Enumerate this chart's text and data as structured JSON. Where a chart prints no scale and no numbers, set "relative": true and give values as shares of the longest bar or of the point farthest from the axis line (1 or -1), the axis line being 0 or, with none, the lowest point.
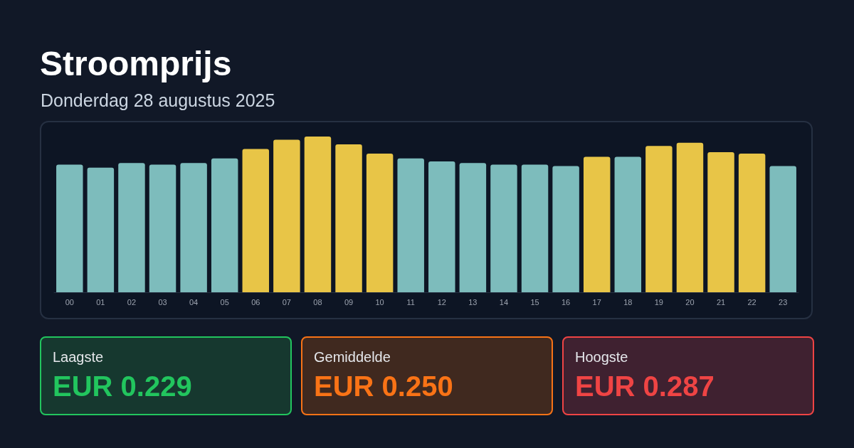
{
  "chart_data": {
    "type": "bar",
    "title": "Stroomprijs",
    "subtitle": "Donderdag 28 augustus 2025",
    "relative": true,
    "categories": [
      "00",
      "01",
      "02",
      "03",
      "04",
      "05",
      "06",
      "07",
      "08",
      "09",
      "10",
      "11",
      "12",
      "13",
      "14",
      "15",
      "16",
      "17",
      "18",
      "19",
      "20",
      "21",
      "22",
      "23"
    ],
    "values": [
      0.82,
      0.8,
      0.83,
      0.82,
      0.83,
      0.86,
      0.92,
      0.98,
      1,
      0.95,
      0.89,
      0.86,
      0.84,
      0.83,
      0.82,
      0.82,
      0.81,
      0.87,
      0.87,
      0.94,
      0.96,
      0.9,
      0.89,
      0.81
    ],
    "colors": [
      "#7dbcbc",
      "#7dbcbc",
      "#7dbcbc",
      "#7dbcbc",
      "#7dbcbc",
      "#7dbcbc",
      "#e8c547",
      "#e8c547",
      "#e8c547",
      "#e8c547",
      "#e8c547",
      "#7dbcbc",
      "#7dbcbc",
      "#7dbcbc",
      "#7dbcbc",
      "#7dbcbc",
      "#7dbcbc",
      "#e8c547",
      "#7dbcbc",
      "#e8c547",
      "#e8c547",
      "#e8c547",
      "#e8c547",
      "#7dbcbc"
    ],
    "annotations": [
      "Laagste",
      "EUR 0.229",
      "Gemiddelde",
      "EUR 0.250",
      "Hoogste",
      "EUR 0.287"
    ]
  }
}
